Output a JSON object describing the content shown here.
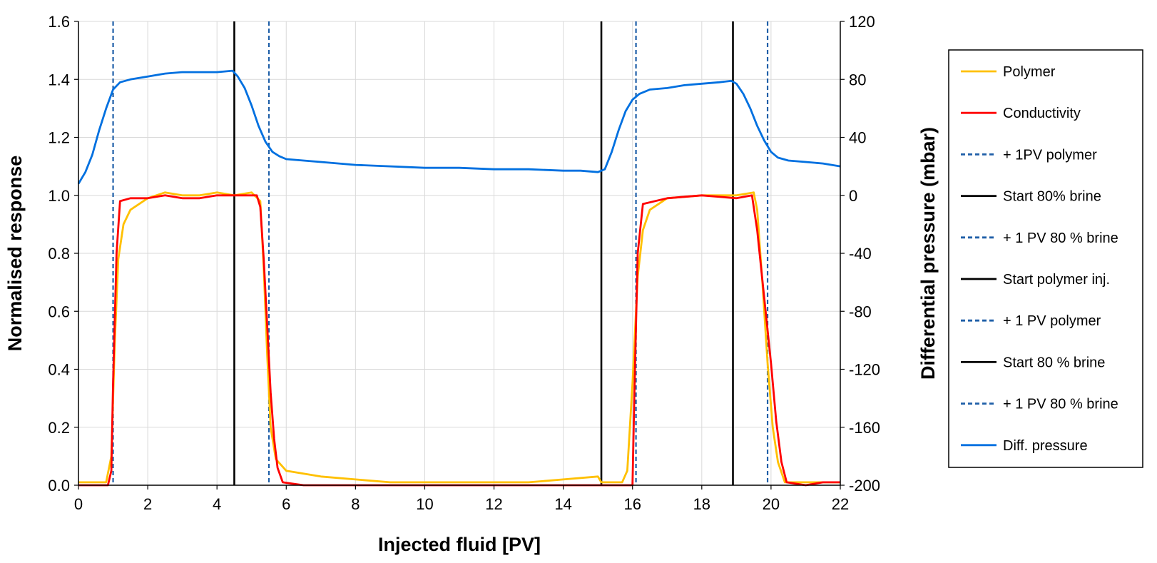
{
  "chart_data": {
    "type": "line",
    "xlabel": "Injected fluid [PV]",
    "ylabel": "Normalised  response",
    "y2label": "Differential pressure  (mbar)",
    "xlim": [
      0,
      22
    ],
    "ylim": [
      0,
      1.6
    ],
    "y2lim": [
      -200,
      120
    ],
    "x_ticks": [
      "0",
      "2",
      "4",
      "6",
      "8",
      "10",
      "12",
      "14",
      "16",
      "18",
      "20",
      "22"
    ],
    "y_ticks": [
      "0.0",
      "0.2",
      "0.4",
      "0.6",
      "0.8",
      "1.0",
      "1.2",
      "1.4",
      "1.6"
    ],
    "y2_ticks": [
      "-200",
      "-160",
      "-120",
      "-80",
      "-40",
      "0",
      "40",
      "80",
      "120"
    ],
    "grid": true,
    "legend_position": "right",
    "series": [
      {
        "name": "Polymer",
        "axis": "left",
        "color": "#FFC000",
        "points": [
          [
            0,
            0.01
          ],
          [
            0.8,
            0.01
          ],
          [
            0.95,
            0.1
          ],
          [
            1.05,
            0.5
          ],
          [
            1.15,
            0.78
          ],
          [
            1.3,
            0.9
          ],
          [
            1.5,
            0.95
          ],
          [
            2,
            0.99
          ],
          [
            2.5,
            1.01
          ],
          [
            3,
            1.0
          ],
          [
            3.5,
            1.0
          ],
          [
            4,
            1.01
          ],
          [
            4.5,
            1.0
          ],
          [
            5,
            1.01
          ],
          [
            5.25,
            0.98
          ],
          [
            5.35,
            0.75
          ],
          [
            5.45,
            0.45
          ],
          [
            5.55,
            0.2
          ],
          [
            5.7,
            0.09
          ],
          [
            6,
            0.05
          ],
          [
            6.5,
            0.04
          ],
          [
            7,
            0.03
          ],
          [
            8,
            0.02
          ],
          [
            9,
            0.01
          ],
          [
            10,
            0.01
          ],
          [
            11,
            0.01
          ],
          [
            12,
            0.01
          ],
          [
            13,
            0.01
          ],
          [
            14,
            0.02
          ],
          [
            15,
            0.03
          ],
          [
            15.1,
            0.01
          ],
          [
            15.7,
            0.01
          ],
          [
            15.85,
            0.05
          ],
          [
            16.0,
            0.35
          ],
          [
            16.15,
            0.72
          ],
          [
            16.3,
            0.88
          ],
          [
            16.5,
            0.95
          ],
          [
            17,
            0.99
          ],
          [
            18,
            1.0
          ],
          [
            19,
            1.0
          ],
          [
            19.5,
            1.01
          ],
          [
            19.6,
            0.95
          ],
          [
            19.75,
            0.7
          ],
          [
            19.9,
            0.42
          ],
          [
            20.05,
            0.2
          ],
          [
            20.2,
            0.08
          ],
          [
            20.4,
            0.01
          ],
          [
            21,
            0.01
          ],
          [
            22,
            0.01
          ]
        ]
      },
      {
        "name": "Conductivity",
        "axis": "left",
        "color": "#FF0000",
        "points": [
          [
            0,
            0.0
          ],
          [
            0.85,
            0.0
          ],
          [
            0.95,
            0.05
          ],
          [
            1.0,
            0.35
          ],
          [
            1.1,
            0.8
          ],
          [
            1.2,
            0.98
          ],
          [
            1.5,
            0.99
          ],
          [
            2,
            0.99
          ],
          [
            2.5,
            1.0
          ],
          [
            3,
            0.99
          ],
          [
            3.5,
            0.99
          ],
          [
            4,
            1.0
          ],
          [
            4.5,
            1.0
          ],
          [
            5,
            1.0
          ],
          [
            5.15,
            1.0
          ],
          [
            5.25,
            0.96
          ],
          [
            5.35,
            0.78
          ],
          [
            5.45,
            0.55
          ],
          [
            5.55,
            0.32
          ],
          [
            5.65,
            0.16
          ],
          [
            5.75,
            0.06
          ],
          [
            5.9,
            0.01
          ],
          [
            6.5,
            0.0
          ],
          [
            8,
            0.0
          ],
          [
            10,
            0.0
          ],
          [
            12,
            0.0
          ],
          [
            14,
            0.0
          ],
          [
            15,
            0.0
          ],
          [
            16.0,
            0.0
          ],
          [
            16.05,
            0.3
          ],
          [
            16.15,
            0.8
          ],
          [
            16.3,
            0.97
          ],
          [
            17,
            0.99
          ],
          [
            18,
            1.0
          ],
          [
            19,
            0.99
          ],
          [
            19.45,
            1.0
          ],
          [
            19.6,
            0.88
          ],
          [
            19.8,
            0.65
          ],
          [
            20.0,
            0.42
          ],
          [
            20.15,
            0.22
          ],
          [
            20.3,
            0.08
          ],
          [
            20.45,
            0.01
          ],
          [
            21,
            0.0
          ],
          [
            21.5,
            0.01
          ],
          [
            22,
            0.01
          ]
        ]
      },
      {
        "name": "Diff. pressure",
        "axis": "right",
        "color": "#0070E0",
        "points": [
          [
            0,
            8
          ],
          [
            0.2,
            16
          ],
          [
            0.4,
            28
          ],
          [
            0.6,
            45
          ],
          [
            0.8,
            60
          ],
          [
            1.0,
            73
          ],
          [
            1.2,
            78
          ],
          [
            1.5,
            80
          ],
          [
            2,
            82
          ],
          [
            2.5,
            84
          ],
          [
            3,
            85
          ],
          [
            3.5,
            85
          ],
          [
            4,
            85
          ],
          [
            4.45,
            86
          ],
          [
            4.6,
            82
          ],
          [
            4.8,
            74
          ],
          [
            5.0,
            62
          ],
          [
            5.2,
            48
          ],
          [
            5.4,
            37
          ],
          [
            5.6,
            30
          ],
          [
            5.8,
            27
          ],
          [
            6,
            25
          ],
          [
            7,
            23
          ],
          [
            8,
            21
          ],
          [
            9,
            20
          ],
          [
            10,
            19
          ],
          [
            11,
            19
          ],
          [
            12,
            18
          ],
          [
            13,
            18
          ],
          [
            14,
            17
          ],
          [
            14.5,
            17
          ],
          [
            15.0,
            16
          ],
          [
            15.2,
            18
          ],
          [
            15.4,
            30
          ],
          [
            15.6,
            45
          ],
          [
            15.8,
            58
          ],
          [
            16.0,
            66
          ],
          [
            16.2,
            70
          ],
          [
            16.5,
            73
          ],
          [
            17,
            74
          ],
          [
            17.5,
            76
          ],
          [
            18,
            77
          ],
          [
            18.5,
            78
          ],
          [
            18.85,
            79
          ],
          [
            19.0,
            77
          ],
          [
            19.2,
            70
          ],
          [
            19.4,
            60
          ],
          [
            19.6,
            48
          ],
          [
            19.8,
            38
          ],
          [
            20.0,
            30
          ],
          [
            20.2,
            26
          ],
          [
            20.5,
            24
          ],
          [
            21,
            23
          ],
          [
            21.5,
            22
          ],
          [
            22,
            20
          ]
        ]
      }
    ],
    "markers": [
      {
        "name": "+ 1PV polymer",
        "x": 1.0,
        "style": "dashed",
        "color": "#1F5FA8"
      },
      {
        "name": "Start 80% brine",
        "x": 4.5,
        "style": "solid",
        "color": "#000000"
      },
      {
        "name": "+ 1 PV 80 % brine",
        "x": 5.5,
        "style": "dashed",
        "color": "#1F5FA8"
      },
      {
        "name": "Start polymer inj.",
        "x": 15.1,
        "style": "solid",
        "color": "#000000"
      },
      {
        "name": "+ 1 PV polymer",
        "x": 16.1,
        "style": "dashed",
        "color": "#1F5FA8"
      },
      {
        "name": "Start 80 % brine",
        "x": 18.9,
        "style": "solid",
        "color": "#000000"
      },
      {
        "name": "+ 1 PV 80 % brine",
        "x": 19.9,
        "style": "dashed",
        "color": "#1F5FA8"
      }
    ],
    "legend": [
      {
        "label": "Polymer",
        "color": "#FFC000",
        "style": "solid"
      },
      {
        "label": "Conductivity",
        "color": "#FF0000",
        "style": "solid"
      },
      {
        "label": "+ 1PV polymer",
        "color": "#1F5FA8",
        "style": "dashed"
      },
      {
        "label": "Start 80% brine",
        "color": "#000000",
        "style": "solid"
      },
      {
        "label": "+ 1 PV 80 % brine",
        "color": "#1F5FA8",
        "style": "dashed"
      },
      {
        "label": "Start polymer inj.",
        "color": "#000000",
        "style": "solid"
      },
      {
        "label": "+ 1 PV polymer",
        "color": "#1F5FA8",
        "style": "dashed"
      },
      {
        "label": "Start 80 % brine",
        "color": "#000000",
        "style": "solid"
      },
      {
        "label": "+ 1 PV 80 % brine",
        "color": "#1F5FA8",
        "style": "dashed"
      },
      {
        "label": "Diff. pressure",
        "color": "#0070E0",
        "style": "solid"
      }
    ]
  }
}
